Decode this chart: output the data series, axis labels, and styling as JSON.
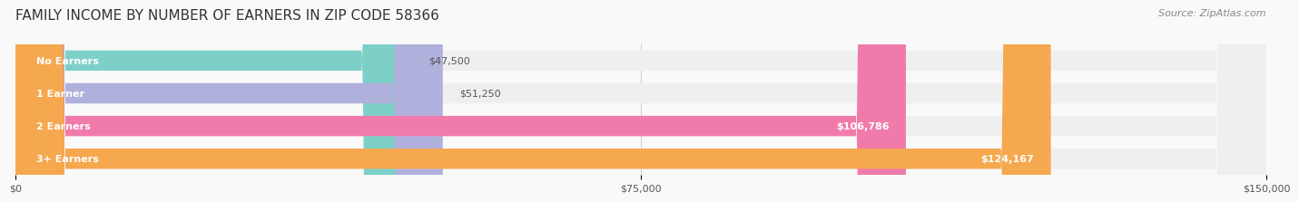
{
  "title": "FAMILY INCOME BY NUMBER OF EARNERS IN ZIP CODE 58366",
  "source": "Source: ZipAtlas.com",
  "categories": [
    "No Earners",
    "1 Earner",
    "2 Earners",
    "3+ Earners"
  ],
  "values": [
    47500,
    51250,
    106786,
    124167
  ],
  "bar_colors": [
    "#7dd0c8",
    "#b0b0dc",
    "#f07baa",
    "#f5a84e"
  ],
  "bar_bg_color": "#efefef",
  "label_texts": [
    "$47,500",
    "$51,250",
    "$106,786",
    "$124,167"
  ],
  "xmax": 150000,
  "xticks": [
    0,
    75000,
    150000
  ],
  "xtick_labels": [
    "$0",
    "$75,000",
    "$150,000"
  ],
  "title_fontsize": 11,
  "source_fontsize": 8,
  "label_fontsize": 8,
  "cat_fontsize": 8,
  "background_color": "#f9f9f9"
}
